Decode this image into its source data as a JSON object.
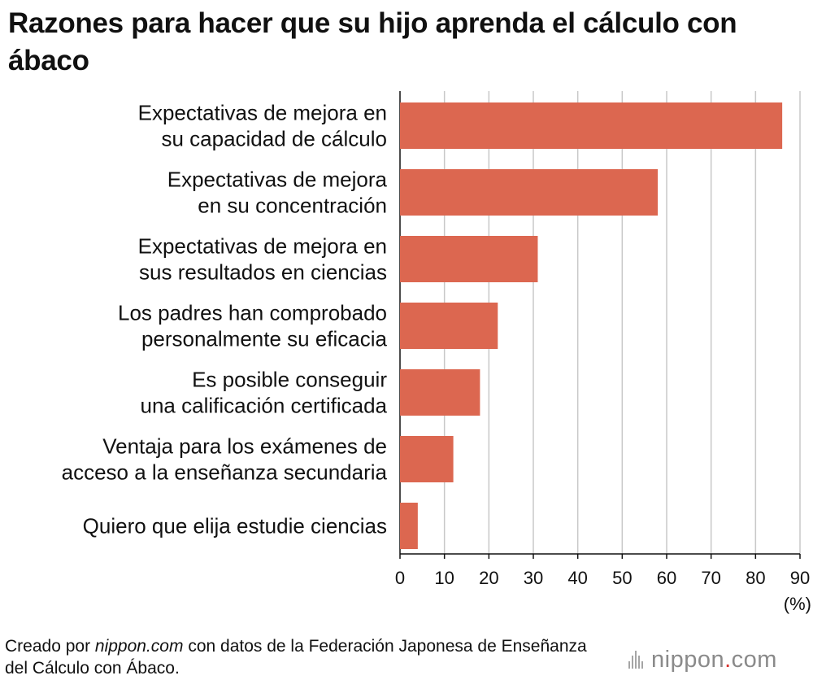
{
  "chart_data": {
    "type": "bar",
    "orientation": "horizontal",
    "title": "Razones para hacer que su hijo aprenda el cálculo con ábaco",
    "categories": [
      [
        "Expectativas de mejora en",
        "su capacidad de cálculo"
      ],
      [
        "Expectativas de mejora",
        "en su concentración"
      ],
      [
        "Expectativas de mejora en",
        "sus resultados en ciencias"
      ],
      [
        "Los padres han comprobado",
        "personalmente su eficacia"
      ],
      [
        "Es posible conseguir",
        "una calificación certificada"
      ],
      [
        "Ventaja para los exámenes de",
        "acceso a la enseñanza secundaria"
      ],
      [
        "Quiero que elija estudie ciencias"
      ]
    ],
    "values": [
      86,
      58,
      31,
      22,
      18,
      12,
      4
    ],
    "xlim": [
      0,
      90
    ],
    "xticks": [
      "0",
      "10",
      "20",
      "30",
      "40",
      "50",
      "60",
      "70",
      "80",
      "90"
    ],
    "xlabel": "(%)",
    "grid": true,
    "bar_color": "#dc6750"
  },
  "footer": {
    "prefix": "Creado por ",
    "site": "nippon.com",
    "suffix": " con datos de la Federación Japonesa de Enseñanza del Cálculo con Ábaco."
  },
  "logo": {
    "name": "nippon",
    "dot": ".",
    "tld": "com"
  },
  "colors": {
    "grid": "#c8c8c8",
    "axis": "#111111",
    "text": "#111111",
    "accent": "#d9322d"
  }
}
